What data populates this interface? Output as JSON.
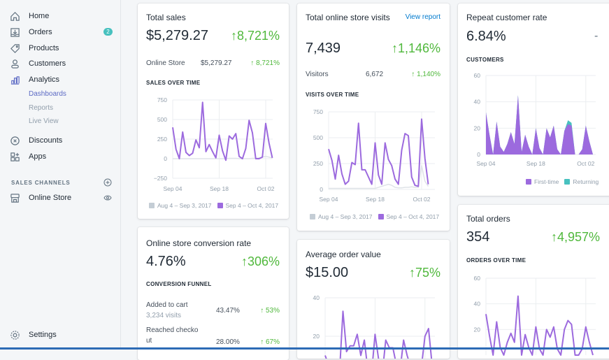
{
  "sidebar": {
    "items": [
      {
        "label": "Home",
        "icon": "home-icon"
      },
      {
        "label": "Orders",
        "icon": "orders-icon",
        "badge": "2"
      },
      {
        "label": "Products",
        "icon": "tag-icon"
      },
      {
        "label": "Customers",
        "icon": "person-icon"
      },
      {
        "label": "Analytics",
        "icon": "bar-chart-icon"
      }
    ],
    "analytics_sub": [
      "Dashboards",
      "Reports",
      "Live View"
    ],
    "more": [
      {
        "label": "Discounts",
        "icon": "discount-icon"
      },
      {
        "label": "Apps",
        "icon": "apps-icon"
      }
    ],
    "sales_channels_label": "SALES CHANNELS",
    "online_store": "Online Store",
    "settings": "Settings"
  },
  "colors": {
    "current": "#9c6ade",
    "previous": "#c4cdd5",
    "returning": "#47c1bf",
    "positive": "#50b83c",
    "active_nav": "#5c6ac4"
  },
  "total_sales": {
    "title": "Total sales",
    "value": "$5,279.27",
    "change": "↑8,721%",
    "row": {
      "label": "Online Store",
      "value": "$5,279.27",
      "change": "↑ 8,721%"
    },
    "caption": "SALES OVER TIME"
  },
  "visits": {
    "title": "Total online store visits",
    "link": "View report",
    "value": "7,439",
    "change": "↑1,146%",
    "row": {
      "label": "Visitors",
      "value": "6,672",
      "change": "↑ 1,140%"
    },
    "caption": "VISITS OVER TIME"
  },
  "repeat": {
    "title": "Repeat customer rate",
    "value": "6.84%",
    "change": "-",
    "caption": "CUSTOMERS"
  },
  "orders": {
    "title": "Total orders",
    "value": "354",
    "change": "↑4,957%",
    "caption": "ORDERS OVER TIME"
  },
  "conversion": {
    "title": "Online store conversion rate",
    "value": "4.76%",
    "change": "↑306%",
    "caption": "CONVERSION FUNNEL",
    "rows": [
      {
        "label": "Added to cart",
        "sub": "3,234 visits",
        "value": "43.47%",
        "change": "↑ 53%"
      },
      {
        "label": "Reached checko ut",
        "value": "28.00%",
        "change": "↑ 67%"
      }
    ]
  },
  "aov": {
    "title": "Average order value",
    "value": "$15.00",
    "change": "↑75%"
  },
  "legend": {
    "previous": "Aug 4 – Sep 3, 2017",
    "current": "Sep 4 – Oct 4, 2017",
    "first_time": "First-time",
    "returning": "Returning"
  },
  "chart_data": [
    {
      "id": "sales",
      "type": "line",
      "yticks": [
        "750",
        "500",
        "250",
        "0",
        "−250"
      ],
      "ylim": [
        -250,
        750
      ],
      "xticks": [
        "Sep 04",
        "Sep 18",
        "Oct 02"
      ],
      "grid": true,
      "series": [
        {
          "name": "Aug 4 – Sep 3, 2017",
          "values": [
            0,
            0,
            0,
            0,
            0,
            0,
            0,
            0,
            0,
            0,
            0,
            0,
            0,
            0,
            0,
            0,
            0,
            5,
            5,
            5,
            0,
            0,
            0,
            0,
            5,
            5,
            10,
            20,
            30,
            20,
            10
          ]
        },
        {
          "name": "Sep 4 – Oct 4, 2017",
          "values": [
            400,
            120,
            0,
            340,
            80,
            40,
            70,
            240,
            140,
            720,
            90,
            180,
            90,
            10,
            300,
            100,
            -20,
            290,
            250,
            320,
            30,
            0,
            130,
            490,
            330,
            0,
            0,
            20,
            450,
            200,
            10
          ]
        }
      ]
    },
    {
      "id": "visits",
      "type": "line",
      "yticks": [
        "750",
        "500",
        "250",
        "0"
      ],
      "ylim": [
        0,
        750
      ],
      "xticks": [
        "Sep 04",
        "Sep 18",
        "Oct 02"
      ],
      "grid": true,
      "series": [
        {
          "name": "Aug 4 – Sep 3, 2017",
          "values": [
            10,
            10,
            10,
            10,
            10,
            10,
            10,
            10,
            10,
            10,
            10,
            10,
            10,
            10,
            10,
            20,
            30,
            40,
            50,
            40,
            20,
            15,
            15,
            20,
            20,
            25,
            20,
            20,
            230,
            80,
            30
          ]
        },
        {
          "name": "Sep 4 – Oct 4, 2017",
          "values": [
            390,
            280,
            100,
            330,
            150,
            50,
            80,
            260,
            240,
            640,
            190,
            190,
            120,
            50,
            450,
            140,
            50,
            450,
            290,
            230,
            100,
            50,
            380,
            540,
            520,
            120,
            40,
            30,
            680,
            300,
            50
          ]
        }
      ]
    },
    {
      "id": "customers",
      "type": "area",
      "yticks": [
        "60",
        "40",
        "20",
        "0"
      ],
      "ylim": [
        0,
        60
      ],
      "xticks": [
        "Sep 04",
        "Sep 18",
        "Oct 02"
      ],
      "grid": true,
      "series": [
        {
          "name": "First-time",
          "values": [
            32,
            15,
            0,
            25,
            6,
            2,
            8,
            17,
            8,
            45,
            2,
            15,
            6,
            0,
            20,
            5,
            0,
            20,
            13,
            22,
            4,
            0,
            18,
            23,
            22,
            0,
            0,
            4,
            22,
            10,
            0
          ]
        },
        {
          "name": "Returning",
          "values": [
            0,
            0,
            0,
            0,
            0,
            0,
            0,
            0,
            0,
            0,
            0,
            0,
            0,
            0,
            0,
            0,
            0,
            0,
            0,
            0,
            0,
            0,
            0,
            3,
            2,
            0,
            0,
            0,
            0,
            0,
            0
          ]
        }
      ]
    },
    {
      "id": "orders",
      "type": "line",
      "yticks": [
        "60",
        "40",
        "20"
      ],
      "ylim": [
        0,
        60
      ],
      "grid": true,
      "series": [
        {
          "values": [
            32,
            15,
            0,
            26,
            6,
            0,
            10,
            17,
            10,
            46,
            0,
            16,
            6,
            0,
            22,
            5,
            0,
            20,
            14,
            22,
            5,
            0,
            20,
            27,
            24,
            0,
            0,
            5,
            22,
            10,
            0
          ]
        }
      ]
    },
    {
      "id": "aov",
      "type": "line",
      "yticks": [
        "40",
        "20"
      ],
      "ylim": [
        0,
        40
      ],
      "grid": true,
      "series": [
        {
          "values": [
            10,
            5,
            0,
            3,
            0,
            33,
            12,
            15,
            15,
            21,
            10,
            18,
            2,
            0,
            21,
            8,
            0,
            18,
            14,
            14,
            5,
            2,
            18,
            10,
            4,
            0,
            0,
            4,
            20,
            24,
            5
          ]
        }
      ]
    }
  ]
}
